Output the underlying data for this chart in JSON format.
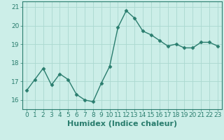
{
  "x": [
    0,
    1,
    2,
    3,
    4,
    5,
    6,
    7,
    8,
    9,
    10,
    11,
    12,
    13,
    14,
    15,
    16,
    17,
    18,
    19,
    20,
    21,
    22,
    23
  ],
  "y": [
    16.5,
    17.1,
    17.7,
    16.8,
    17.4,
    17.1,
    16.3,
    16.0,
    15.9,
    16.9,
    17.8,
    19.9,
    20.8,
    20.4,
    19.7,
    19.5,
    19.2,
    18.9,
    19.0,
    18.8,
    18.8,
    19.1,
    19.1,
    18.9
  ],
  "line_color": "#2a7d6e",
  "marker": "D",
  "marker_size": 2.5,
  "xlabel": "Humidex (Indice chaleur)",
  "ylim": [
    15.5,
    21.3
  ],
  "xlim": [
    -0.5,
    23.5
  ],
  "yticks": [
    16,
    17,
    18,
    19,
    20,
    21
  ],
  "xticks": [
    0,
    1,
    2,
    3,
    4,
    5,
    6,
    7,
    8,
    9,
    10,
    11,
    12,
    13,
    14,
    15,
    16,
    17,
    18,
    19,
    20,
    21,
    22,
    23
  ],
  "bg_color": "#cceee8",
  "grid_color": "#aad8d0",
  "axis_color": "#2a7d6e",
  "xlabel_fontsize": 8,
  "tick_fontsize": 6.5,
  "linewidth": 1.0
}
